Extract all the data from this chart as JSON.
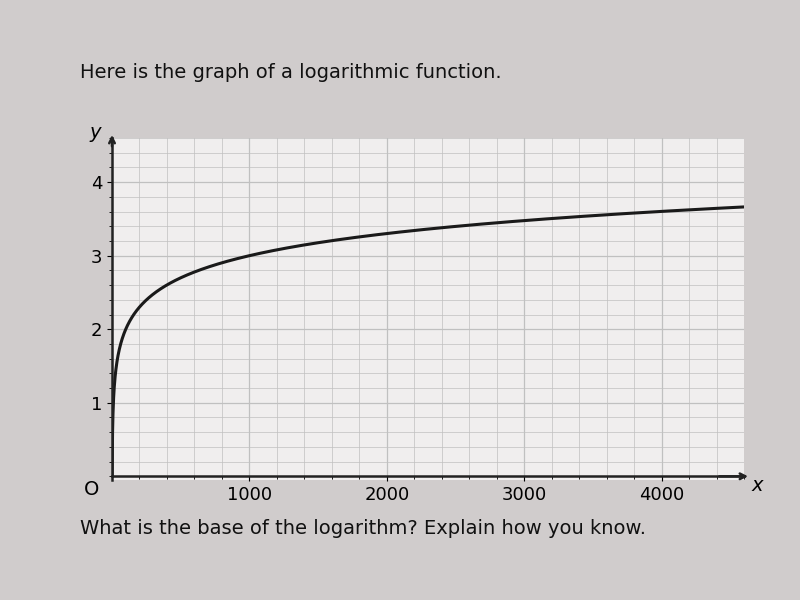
{
  "title": "Here is the graph of a logarithmic function.",
  "subtitle": "What is the base of the logarithm? Explain how you know.",
  "xlabel": "x",
  "ylabel": "y",
  "base": 10,
  "x_start": 1,
  "x_end": 4600,
  "xlim": [
    0,
    4600
  ],
  "ylim": [
    -0.05,
    4.6
  ],
  "xticks": [
    1000,
    2000,
    3000,
    4000
  ],
  "yticks": [
    1,
    2,
    3,
    4
  ],
  "grid_color": "#c0c0c0",
  "curve_color": "#1a1a1a",
  "curve_linewidth": 2.2,
  "fig_bg_color": "#d0cccc",
  "plot_bg_color": "#f0eeee",
  "title_fontsize": 14,
  "subtitle_fontsize": 14,
  "tick_fontsize": 13,
  "axis_label_fontsize": 14
}
